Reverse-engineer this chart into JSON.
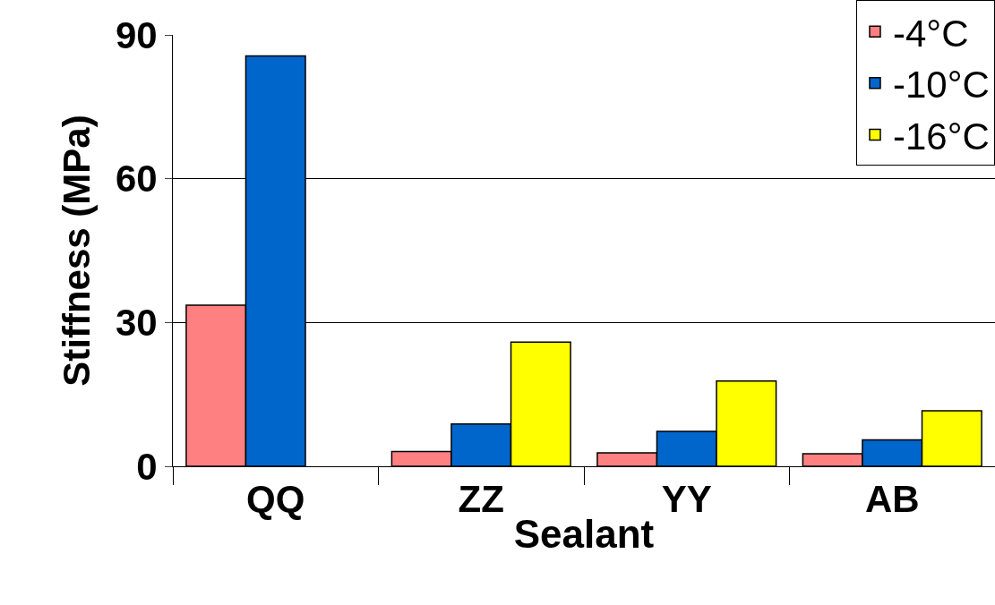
{
  "chart_data": {
    "type": "bar",
    "xlabel": "Sealant",
    "ylabel": "Stiffness (MPa)",
    "categories": [
      "QQ",
      "ZZ",
      "YY",
      "AB"
    ],
    "series": [
      {
        "name": "-4°C",
        "color": "#ff8080",
        "values": [
          33.6,
          3.1,
          2.8,
          2.6
        ]
      },
      {
        "name": "-10°C",
        "color": "#0066cc",
        "values": [
          85.6,
          8.8,
          7.3,
          5.5
        ]
      },
      {
        "name": "-16°C",
        "color": "#ffff00",
        "values": [
          null,
          25.9,
          17.8,
          11.6
        ]
      }
    ],
    "ylim": [
      0,
      90
    ],
    "yticks": [
      0,
      30,
      60,
      90
    ],
    "grid": "y",
    "legend": "top right"
  }
}
